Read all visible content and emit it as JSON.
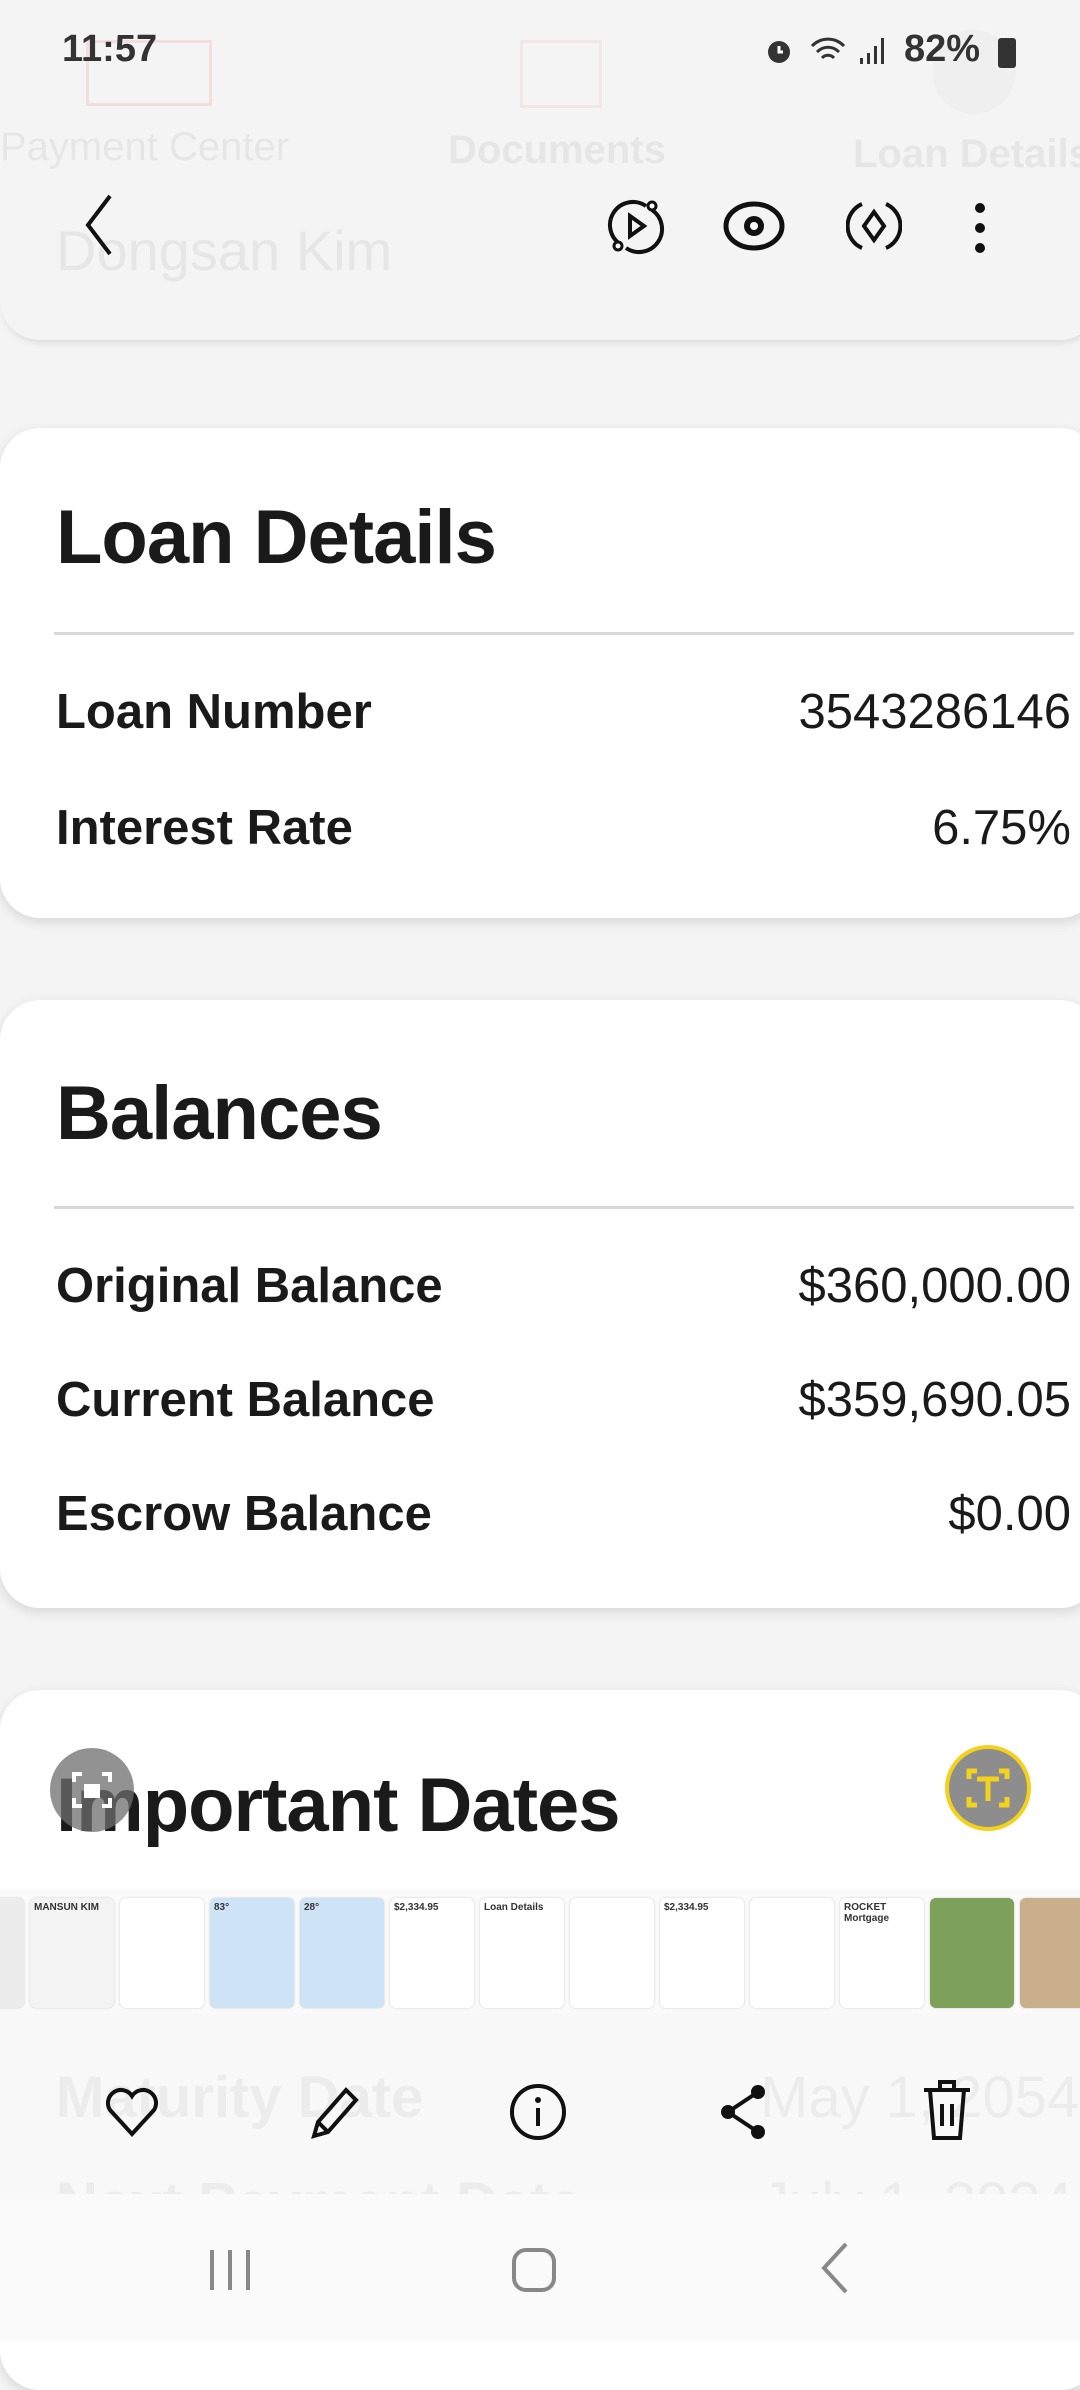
{
  "status_bar": {
    "time": "11:57",
    "battery": "82%"
  },
  "background_app": {
    "tabs": [
      "Payment Center",
      "Documents",
      "Loan Details"
    ],
    "name": "Dongsan Kim",
    "faded_rows": [
      {
        "label": "Maturity Date",
        "value": "May 1, 2054"
      },
      {
        "label": "Next Payment Date",
        "value": "July 1, 2024"
      }
    ]
  },
  "loan_details": {
    "title": "Loan Details",
    "rows": [
      {
        "label": "Loan Number",
        "value": "3543286146"
      },
      {
        "label": "Interest Rate",
        "value": "6.75%"
      }
    ]
  },
  "balances": {
    "title": "Balances",
    "rows": [
      {
        "label": "Original Balance",
        "value": "$360,000.00"
      },
      {
        "label": "Current Balance",
        "value": "$359,690.05"
      },
      {
        "label": "Escrow Balance",
        "value": "$0.00"
      }
    ]
  },
  "important_dates": {
    "title": "Important Dates"
  },
  "thumbnails": [
    {
      "bg": "#ececec"
    },
    {
      "bg": "#f3f3f3",
      "text": "MANSUN KIM"
    },
    {
      "bg": "#ffffff"
    },
    {
      "bg": "#cfe3f7",
      "text": "83°"
    },
    {
      "bg": "#cfe3f7",
      "text": "28°"
    },
    {
      "bg": "#ffffff",
      "text": "$2,334.95"
    },
    {
      "bg": "#ffffff",
      "text": "Loan Details"
    },
    {
      "bg": "#ffffff"
    },
    {
      "bg": "#ffffff",
      "text": "$2,334.95"
    },
    {
      "bg": "#ffffff"
    },
    {
      "bg": "#ffffff",
      "text": "ROCKET Mortgage"
    },
    {
      "bg": "#7da05a"
    },
    {
      "bg": "#c9b08a"
    }
  ],
  "colors": {
    "text_chip": "#f2d21c",
    "brand_red": "#8a1c2b"
  }
}
